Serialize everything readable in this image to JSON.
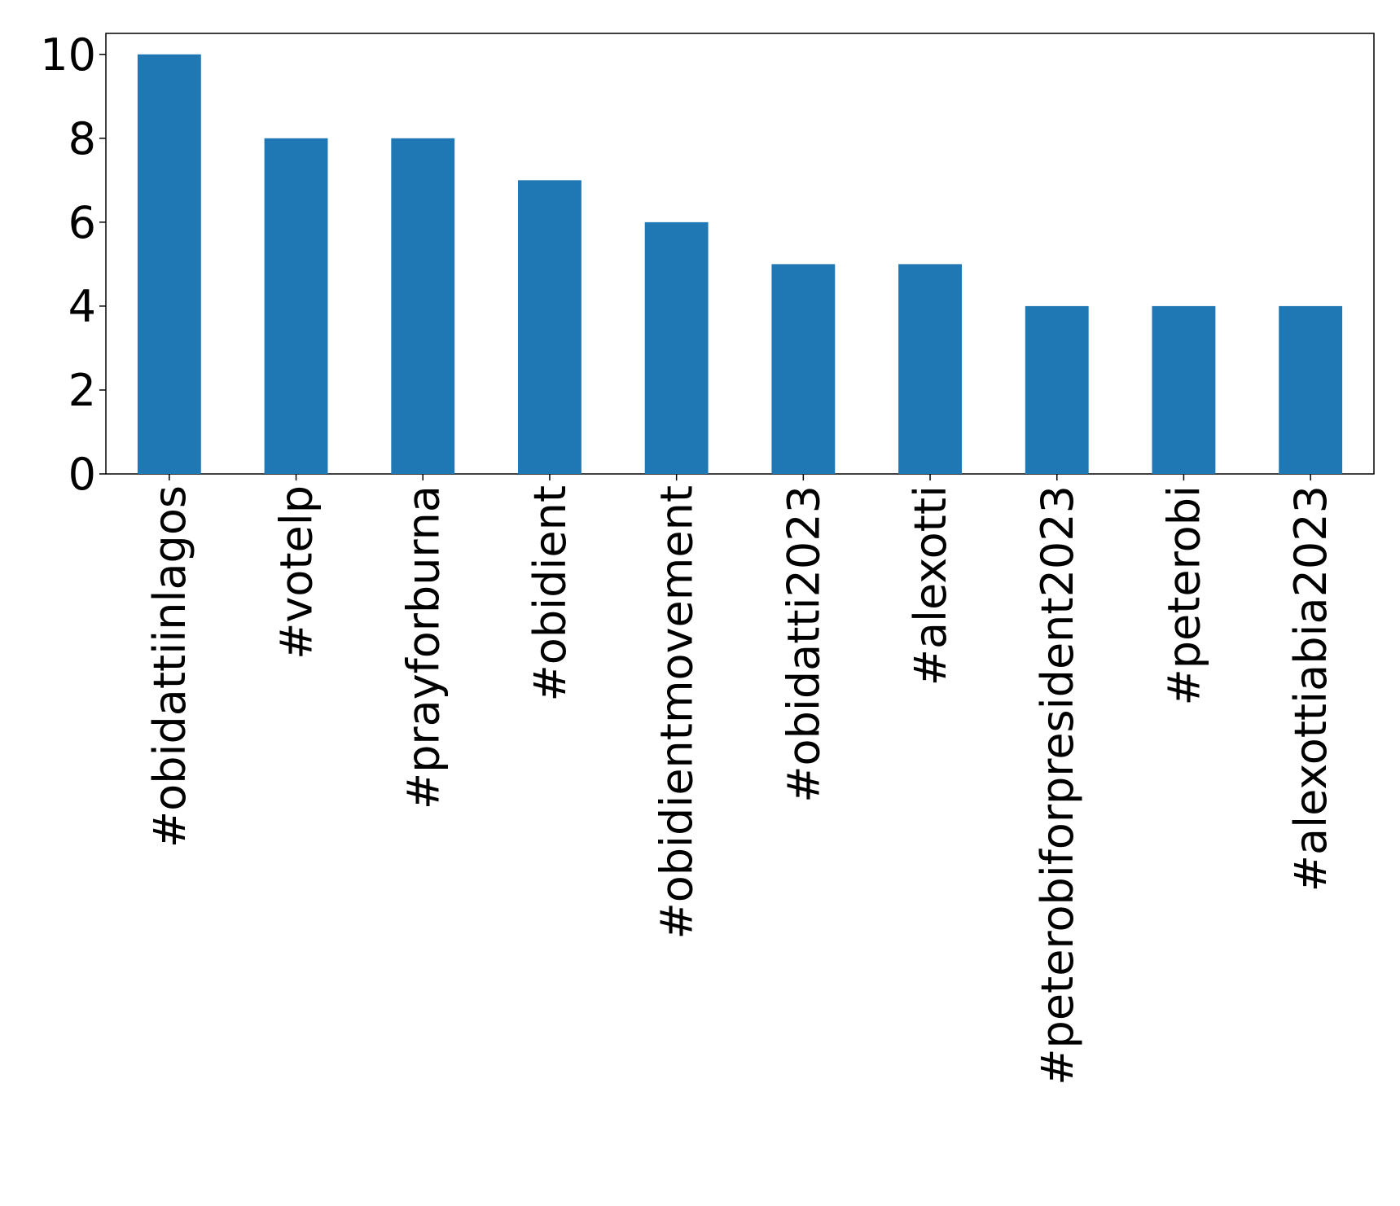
{
  "chart_data": {
    "type": "bar",
    "categories": [
      "#obidattiinlagos",
      "#votelp",
      "#prayforburna",
      "#obidient",
      "#obidientmovement",
      "#obidatti2023",
      "#alexotti",
      "#peterobiforpresident2023",
      "#peterobi",
      "#alexottiabia2023"
    ],
    "values": [
      10,
      8,
      8,
      7,
      6,
      5,
      5,
      4,
      4,
      4
    ],
    "color": "#1f77b4",
    "ylim": [
      0,
      10.5
    ],
    "yticks": [
      0,
      2,
      4,
      6,
      8,
      10
    ],
    "grid": false
  }
}
